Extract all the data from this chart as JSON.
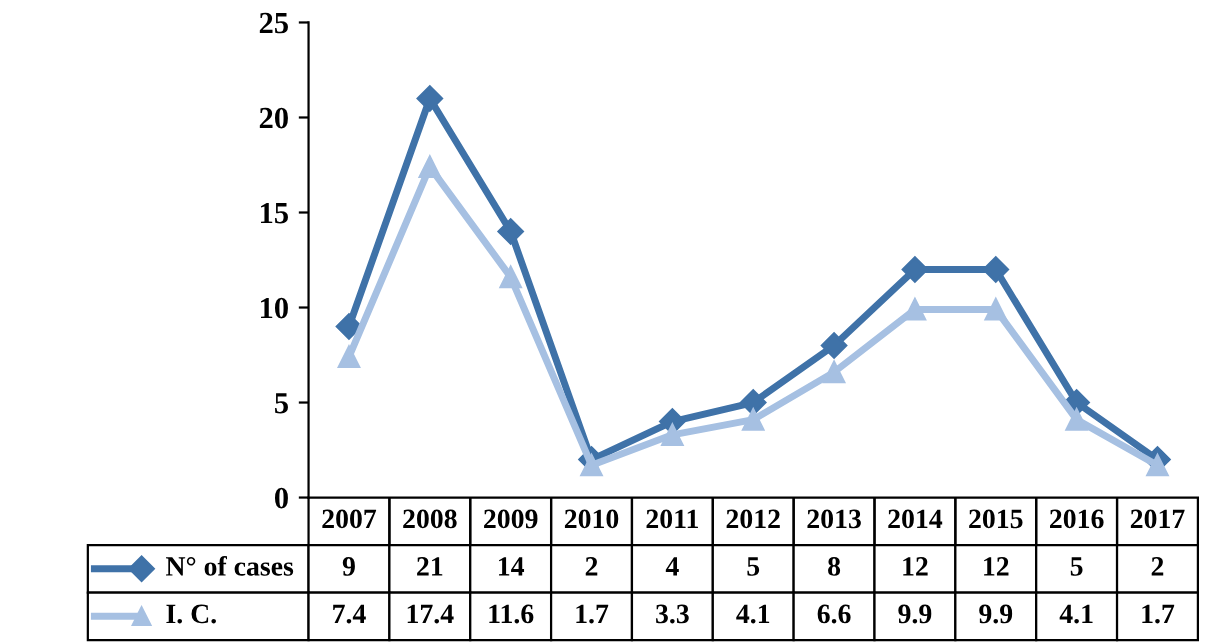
{
  "chart_data": {
    "type": "line",
    "categories": [
      "2007",
      "2008",
      "2009",
      "2010",
      "2011",
      "2012",
      "2013",
      "2014",
      "2015",
      "2016",
      "2017"
    ],
    "series": [
      {
        "name": "N° of cases",
        "color": "#3f72a8",
        "marker": "diamond",
        "values": [
          9,
          21,
          14,
          2,
          4,
          5,
          8,
          12,
          12,
          5,
          2
        ]
      },
      {
        "name": "I. C.",
        "color": "#a6c0e2",
        "marker": "triangle",
        "values": [
          7.4,
          17.4,
          11.6,
          1.7,
          3.3,
          4.1,
          6.6,
          9.9,
          9.9,
          4.1,
          1.7
        ]
      }
    ],
    "ylim": [
      0,
      25
    ],
    "yticks": [
      0,
      5,
      10,
      15,
      20,
      25
    ],
    "grid": false,
    "legend": "bottom",
    "data_labels": true,
    "line_style": "solid"
  }
}
